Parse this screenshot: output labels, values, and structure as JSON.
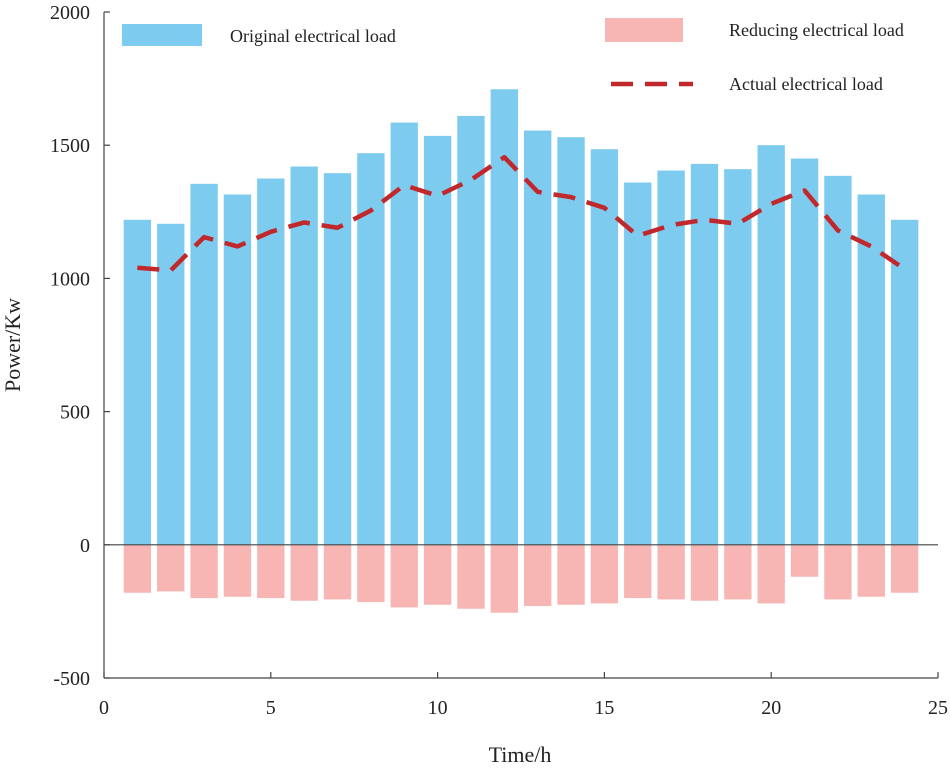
{
  "chart_data": {
    "type": "bar",
    "title": "",
    "xlabel": "Time/h",
    "ylabel": "Power/Kw",
    "xlim": [
      0,
      25
    ],
    "ylim": [
      -500,
      2000
    ],
    "x_ticks": [
      0,
      5,
      10,
      15,
      20,
      25
    ],
    "y_ticks": [
      -500,
      0,
      500,
      1000,
      1500,
      2000
    ],
    "x": [
      1,
      2,
      3,
      4,
      5,
      6,
      7,
      8,
      9,
      10,
      11,
      12,
      13,
      14,
      15,
      16,
      17,
      18,
      19,
      20,
      21,
      22,
      23,
      24
    ],
    "series": [
      {
        "name": "Original electrical load",
        "kind": "bar",
        "color": "#7ECBF0",
        "values": [
          1220,
          1205,
          1355,
          1315,
          1375,
          1420,
          1395,
          1470,
          1585,
          1535,
          1610,
          1710,
          1555,
          1530,
          1485,
          1360,
          1405,
          1430,
          1410,
          1500,
          1450,
          1385,
          1315,
          1220
        ]
      },
      {
        "name": "Reducing electrical load",
        "kind": "bar",
        "color": "#F7B6B4",
        "values": [
          -180,
          -175,
          -200,
          -195,
          -200,
          -210,
          -205,
          -215,
          -235,
          -225,
          -240,
          -255,
          -230,
          -225,
          -220,
          -200,
          -205,
          -210,
          -205,
          -220,
          -120,
          -205,
          -195,
          -180
        ]
      },
      {
        "name": "Actual electrical load",
        "kind": "line",
        "style": "dashed",
        "color": "#C0282B",
        "values": [
          1040,
          1030,
          1155,
          1120,
          1175,
          1210,
          1190,
          1255,
          1350,
          1310,
          1370,
          1455,
          1325,
          1305,
          1265,
          1160,
          1200,
          1220,
          1205,
          1280,
          1330,
          1180,
          1120,
          1035
        ]
      }
    ],
    "legend": {
      "placement": "top",
      "entries": [
        "Original electrical load",
        "Reducing electrical load",
        "Actual electrical load"
      ]
    }
  }
}
